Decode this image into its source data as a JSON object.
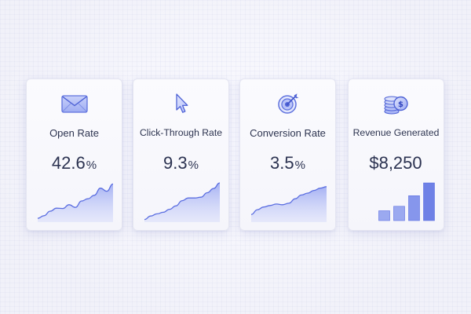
{
  "cards": [
    {
      "id": "open-rate",
      "icon": "envelope-icon",
      "label": "Open Rate",
      "value": "42.6",
      "unit": "%",
      "trend": [
        0.06,
        0.13,
        0.25,
        0.33,
        0.32,
        0.42,
        0.35,
        0.52,
        0.58,
        0.67,
        0.86,
        0.78,
        0.97
      ]
    },
    {
      "id": "click-through-rate",
      "icon": "cursor-arrow-icon",
      "label": "Click-Through Rate",
      "value": "9.3",
      "unit": "%",
      "trend": [
        0.03,
        0.12,
        0.18,
        0.22,
        0.3,
        0.39,
        0.53,
        0.6,
        0.6,
        0.62,
        0.74,
        0.85,
        1.0
      ]
    },
    {
      "id": "conversion-rate",
      "icon": "target-arrow-icon",
      "label": "Conversion Rate",
      "value": "3.5",
      "unit": "%",
      "trend": [
        0.16,
        0.29,
        0.36,
        0.4,
        0.44,
        0.42,
        0.46,
        0.58,
        0.68,
        0.73,
        0.8,
        0.86,
        0.9
      ]
    },
    {
      "id": "revenue-generated",
      "icon": "coin-stack-icon",
      "label": "Revenue Generated",
      "value": "$8,250",
      "unit": "",
      "bars": [
        0.26,
        0.38,
        0.66,
        1.0
      ]
    }
  ],
  "colors": {
    "accent": "#5b6ee1",
    "accent_light": "#a8b4f5",
    "text": "#2d3450"
  }
}
